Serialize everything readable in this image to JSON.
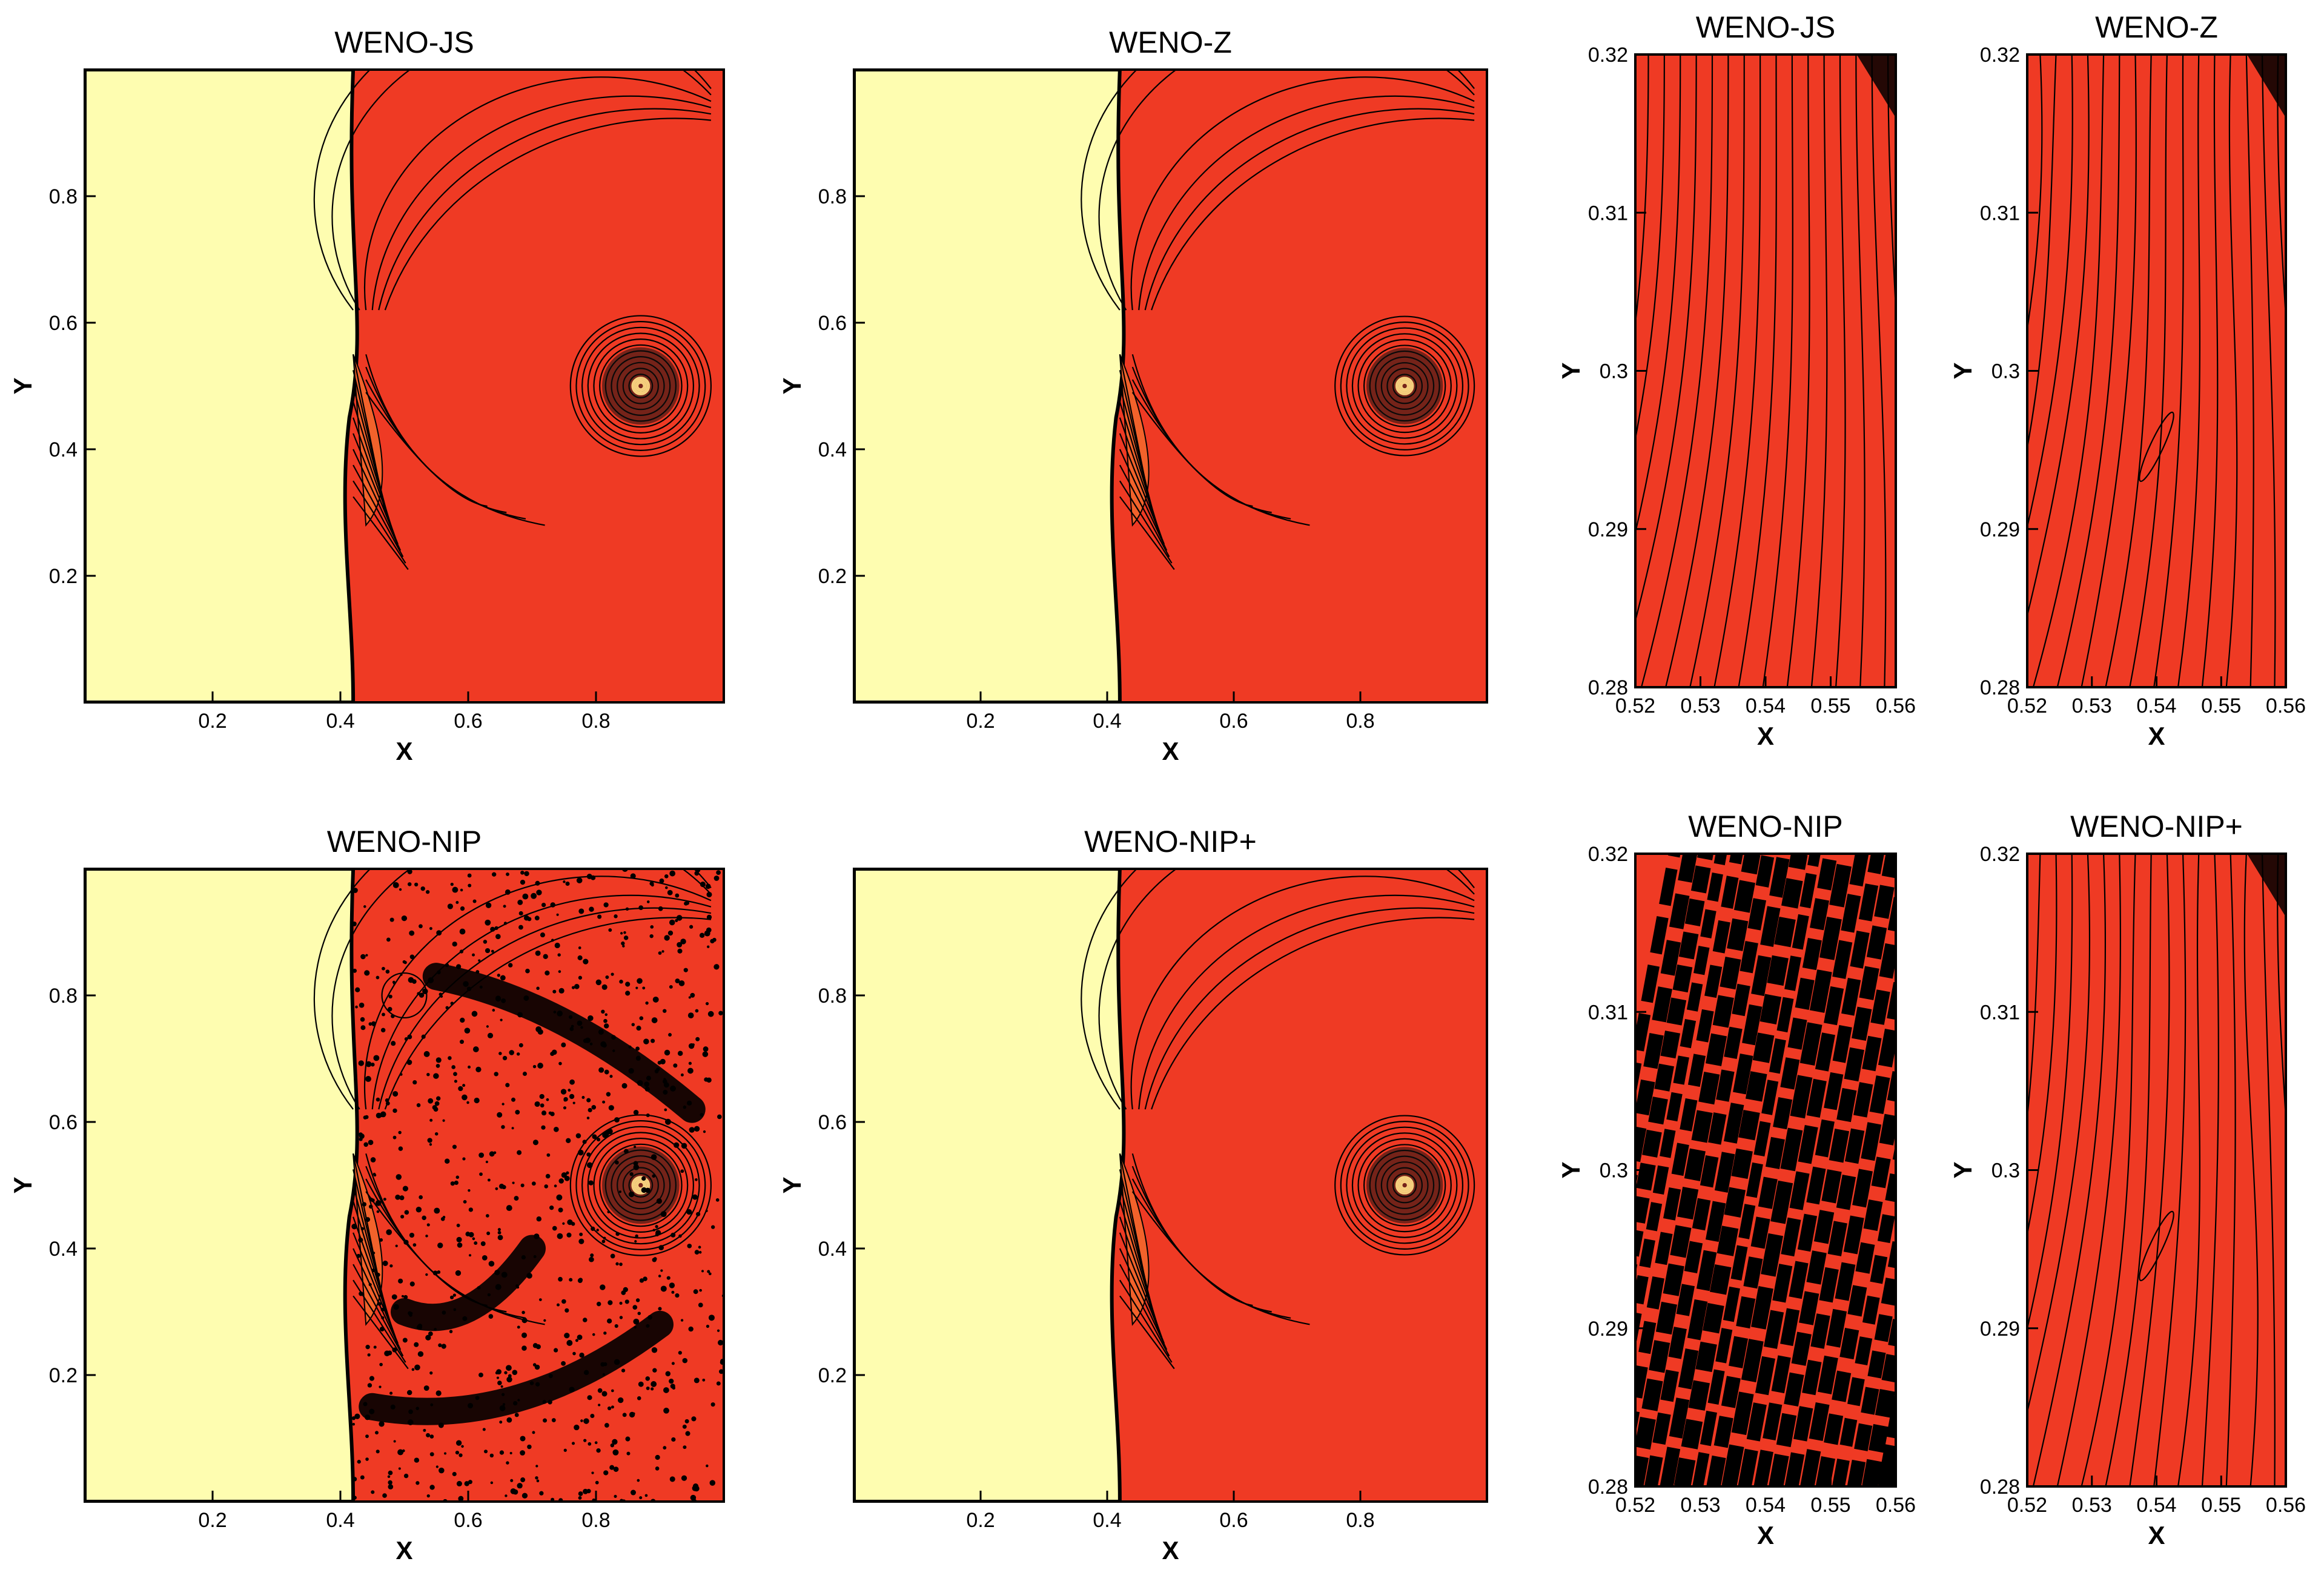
{
  "colors": {
    "background": "#ffffff",
    "flow_red": "#ef3a24",
    "flow_orange": "#f2622b",
    "preshock_yellow": "#fefdb0",
    "contour_line": "#000000",
    "vortex_highlight": "#f6cf7d"
  },
  "chart_data": [
    {
      "type": "heatmap",
      "title": "WENO-JS",
      "xlabel": "X",
      "ylabel": "Y",
      "xlim": [
        0,
        1
      ],
      "ylim": [
        0,
        1
      ],
      "xticks": [
        "0.2",
        "0.4",
        "0.6",
        "0.8"
      ],
      "yticks": [
        "0.2",
        "0.4",
        "0.6",
        "0.8"
      ],
      "shock_x": 0.42,
      "vortex_center": [
        0.87,
        0.5
      ],
      "vortex_radius": 0.11,
      "noise": 0
    },
    {
      "type": "heatmap",
      "title": "WENO-Z",
      "xlabel": "X",
      "ylabel": "Y",
      "xlim": [
        0,
        1
      ],
      "ylim": [
        0,
        1
      ],
      "xticks": [
        "0.2",
        "0.4",
        "0.6",
        "0.8"
      ],
      "yticks": [
        "0.2",
        "0.4",
        "0.6",
        "0.8"
      ],
      "shock_x": 0.42,
      "vortex_center": [
        0.87,
        0.5
      ],
      "vortex_radius": 0.11,
      "noise": 0
    },
    {
      "type": "heatmap",
      "title": "WENO-JS",
      "xlabel": "X",
      "ylabel": "Y",
      "xlim": [
        0.52,
        0.56
      ],
      "ylim": [
        0.28,
        0.32
      ],
      "xticks": [
        "0.52",
        "0.53",
        "0.54",
        "0.55",
        "0.56"
      ],
      "yticks": [
        "0.28",
        "0.29",
        "0.3",
        "0.31",
        "0.32"
      ],
      "noise": 0
    },
    {
      "type": "heatmap",
      "title": "WENO-Z",
      "xlabel": "X",
      "ylabel": "Y",
      "xlim": [
        0.52,
        0.56
      ],
      "ylim": [
        0.28,
        0.32
      ],
      "xticks": [
        "0.52",
        "0.53",
        "0.54",
        "0.55",
        "0.56"
      ],
      "yticks": [
        "0.28",
        "0.29",
        "0.3",
        "0.31",
        "0.32"
      ],
      "noise": 1
    },
    {
      "type": "heatmap",
      "title": "WENO-NIP",
      "xlabel": "X",
      "ylabel": "Y",
      "xlim": [
        0,
        1
      ],
      "ylim": [
        0,
        1
      ],
      "xticks": [
        "0.2",
        "0.4",
        "0.6",
        "0.8"
      ],
      "yticks": [
        "0.2",
        "0.4",
        "0.6",
        "0.8"
      ],
      "shock_x": 0.42,
      "vortex_center": [
        0.87,
        0.5
      ],
      "vortex_radius": 0.11,
      "noise": 3
    },
    {
      "type": "heatmap",
      "title": "WENO-NIP+",
      "xlabel": "X",
      "ylabel": "Y",
      "xlim": [
        0,
        1
      ],
      "ylim": [
        0,
        1
      ],
      "xticks": [
        "0.2",
        "0.4",
        "0.6",
        "0.8"
      ],
      "yticks": [
        "0.2",
        "0.4",
        "0.6",
        "0.8"
      ],
      "shock_x": 0.42,
      "vortex_center": [
        0.87,
        0.5
      ],
      "vortex_radius": 0.11,
      "noise": 0
    },
    {
      "type": "heatmap",
      "title": "WENO-NIP",
      "xlabel": "X",
      "ylabel": "Y",
      "xlim": [
        0.52,
        0.56
      ],
      "ylim": [
        0.28,
        0.32
      ],
      "xticks": [
        "0.52",
        "0.53",
        "0.54",
        "0.55",
        "0.56"
      ],
      "yticks": [
        "0.28",
        "0.29",
        "0.3",
        "0.31",
        "0.32"
      ],
      "noise": 3
    },
    {
      "type": "heatmap",
      "title": "WENO-NIP+",
      "xlabel": "X",
      "ylabel": "Y",
      "xlim": [
        0.52,
        0.56
      ],
      "ylim": [
        0.28,
        0.32
      ],
      "xticks": [
        "0.52",
        "0.53",
        "0.54",
        "0.55",
        "0.56"
      ],
      "yticks": [
        "0.28",
        "0.29",
        "0.3",
        "0.31",
        "0.32"
      ],
      "noise": 1
    }
  ]
}
